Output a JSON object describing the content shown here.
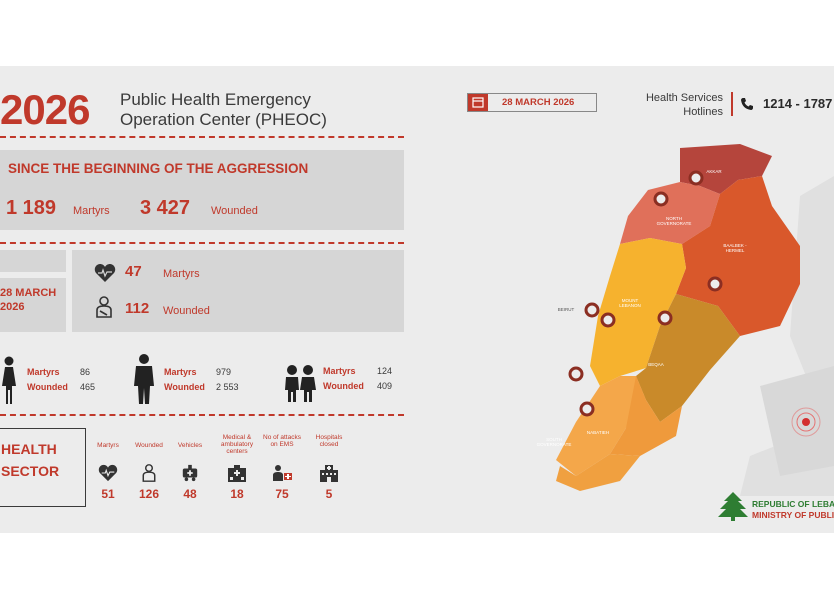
{
  "header": {
    "year": "2026",
    "title_line1": "Public Health Emergency",
    "title_line2": "Operation Center (PHEOC)",
    "date": "28 MARCH 2026",
    "hotline_label_line1": "Health Services",
    "hotline_label_line2": "Hotlines",
    "hotline_number": "1214 - 1787"
  },
  "since": {
    "heading": "SINCE THE BEGINNING OF THE AGGRESSION",
    "martyrs_value": "1 189",
    "martyrs_label": "Martyrs",
    "wounded_value": "3 427",
    "wounded_label": "Wounded"
  },
  "daily": {
    "date_line1": "28 MARCH",
    "date_line2": "2026",
    "martyrs_value": "47",
    "martyrs_label": "Martyrs",
    "wounded_value": "112",
    "wounded_label": "Wounded"
  },
  "groups": [
    {
      "martyrs_label": "Martyrs",
      "martyrs_value": "86",
      "wounded_label": "Wounded",
      "wounded_value": "465"
    },
    {
      "martyrs_label": "Martyrs",
      "martyrs_value": "979",
      "wounded_label": "Wounded",
      "wounded_value": "2 553"
    },
    {
      "martyrs_label": "Martyrs",
      "martyrs_value": "124",
      "wounded_label": "Wounded",
      "wounded_value": "409"
    }
  ],
  "health_sector": {
    "title_line1": "HEALTH",
    "title_line2": "SECTOR",
    "items": [
      {
        "label": "Martyrs",
        "value": "51"
      },
      {
        "label": "Wounded",
        "value": "126"
      },
      {
        "label": "Vehicles",
        "value": "48"
      },
      {
        "label": "Medical & ambulatory centers",
        "value": "18"
      },
      {
        "label": "No of attacks on EMS",
        "value": "75"
      },
      {
        "label": "Hospitals closed",
        "value": "5"
      }
    ]
  },
  "map": {
    "labels": {
      "akkar": "AKKAR",
      "north": "NORTH GOVERNORATE",
      "baalbek": "BAALBEK - HERMEL",
      "beirut": "BEIRUT",
      "mount": "MOUNT LEBANON",
      "beqaa": "BEQAA",
      "south": "SOUTH GOVERNORATE",
      "nabatieh": "NABATIEH"
    },
    "colors": {
      "akkar": "#b5453c",
      "north": "#e0705a",
      "baalbek": "#d9582b",
      "mount": "#f6b22e",
      "beqaa": "#c98a2a",
      "south": "#f4a74a",
      "nabatieh": "#ef9a3c"
    }
  },
  "footer": {
    "org_line1": "REPUBLIC OF LEBANON",
    "org_line2": "MINISTRY OF PUBLIC HEALTH"
  },
  "colors": {
    "accent": "#c0392b",
    "panel": "#d6d6d6",
    "background": "#ececec"
  }
}
